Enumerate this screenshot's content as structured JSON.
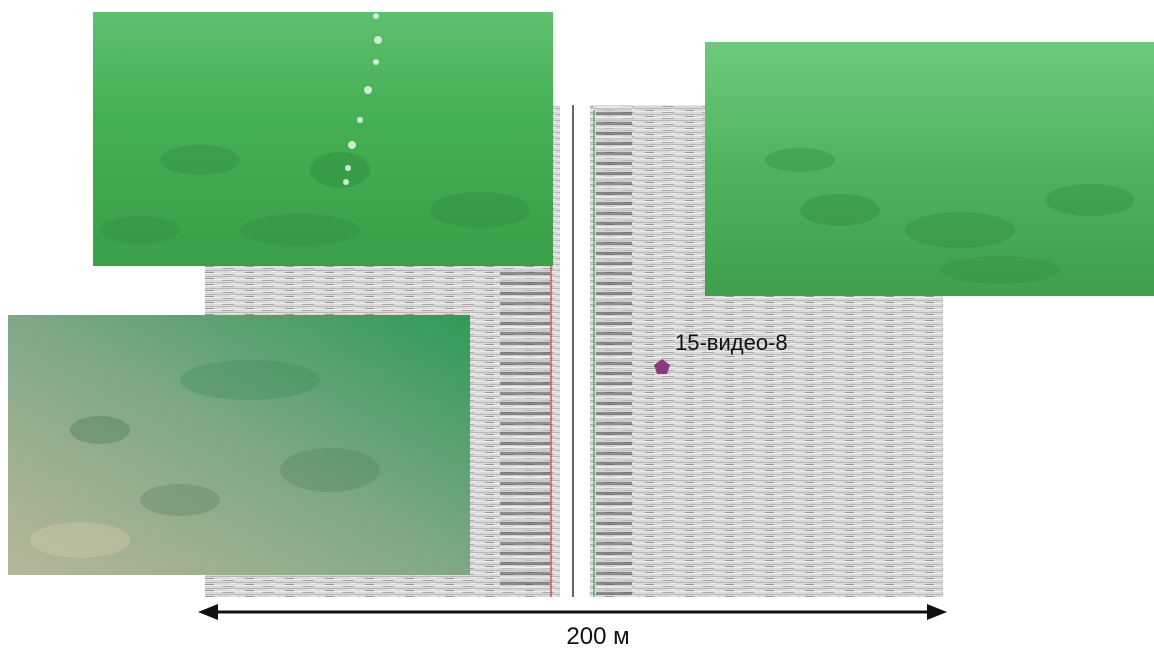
{
  "annotation": {
    "label": "15-видео-8"
  },
  "scale_bar": {
    "label": "200 м"
  }
}
